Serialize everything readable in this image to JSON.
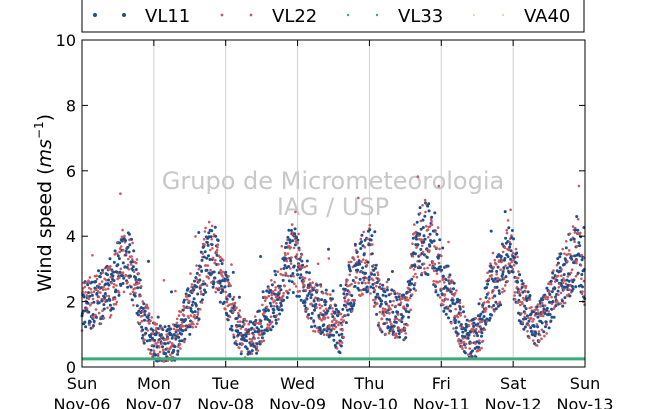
{
  "chart_data": {
    "type": "scatter",
    "title": "",
    "xlabel": "",
    "ylabel": "Wind speed (",
    "ylabel_unit_base": "ms",
    "ylabel_unit_exp": "−1",
    "ylabel_close": ")",
    "ylim": [
      0,
      10
    ],
    "y_ticks": [
      "0",
      "2",
      "4",
      "6",
      "8",
      "10"
    ],
    "x_ticks": [
      {
        "day": "Sun",
        "date": "Nov-06"
      },
      {
        "day": "Mon",
        "date": "Nov-07"
      },
      {
        "day": "Tue",
        "date": "Nov-08"
      },
      {
        "day": "Wed",
        "date": "Nov-09"
      },
      {
        "day": "Thu",
        "date": "Nov-10"
      },
      {
        "day": "Fri",
        "date": "Nov-11"
      },
      {
        "day": "Sat",
        "date": "Nov-12"
      },
      {
        "day": "Sun",
        "date": "Nov-13"
      }
    ],
    "x_range_days": [
      0,
      7
    ],
    "grid": "vertical",
    "legend_position": "top",
    "watermark": [
      "Grupo de Micrometeorologia",
      "IAG / USP"
    ],
    "series": [
      {
        "name": "VL11",
        "color": "#1f4e8c",
        "marker": "dot",
        "style": "points"
      },
      {
        "name": "VL22",
        "color": "#c8585f",
        "marker": "dot",
        "style": "points"
      },
      {
        "name": "VL33",
        "color": "#3aaa78",
        "marker": "dot",
        "style": "points"
      },
      {
        "name": "VA40",
        "color": "#e8b07a",
        "marker": "dot",
        "style": "points"
      }
    ],
    "profile": {
      "x": [
        0,
        0.2,
        0.4,
        0.55,
        0.65,
        0.85,
        1.0,
        1.15,
        1.3,
        1.45,
        1.6,
        1.75,
        1.85,
        2.0,
        2.15,
        2.3,
        2.4,
        2.6,
        2.75,
        2.9,
        3.05,
        3.2,
        3.4,
        3.6,
        3.7,
        3.85,
        4.0,
        4.15,
        4.35,
        4.5,
        4.6,
        4.75,
        4.85,
        5.0,
        5.15,
        5.3,
        5.4,
        5.55,
        5.65,
        5.8,
        5.95,
        6.1,
        6.3,
        6.45,
        6.6,
        6.75,
        6.9,
        7.0
      ],
      "y": [
        1.9,
        2.0,
        2.4,
        3.2,
        3.4,
        1.5,
        0.8,
        0.7,
        0.8,
        1.6,
        2.0,
        3.6,
        3.2,
        2.3,
        1.2,
        0.8,
        0.9,
        1.8,
        2.2,
        3.4,
        3.0,
        1.9,
        1.7,
        1.0,
        2.3,
        3.1,
        3.4,
        1.8,
        1.6,
        1.5,
        3.0,
        4.1,
        3.8,
        2.8,
        2.0,
        1.1,
        0.8,
        1.0,
        2.2,
        2.6,
        3.6,
        2.1,
        1.2,
        1.6,
        2.4,
        3.0,
        3.6,
        2.5
      ]
    },
    "flat_series": {
      "name": "VL33",
      "value": 0.25
    }
  }
}
